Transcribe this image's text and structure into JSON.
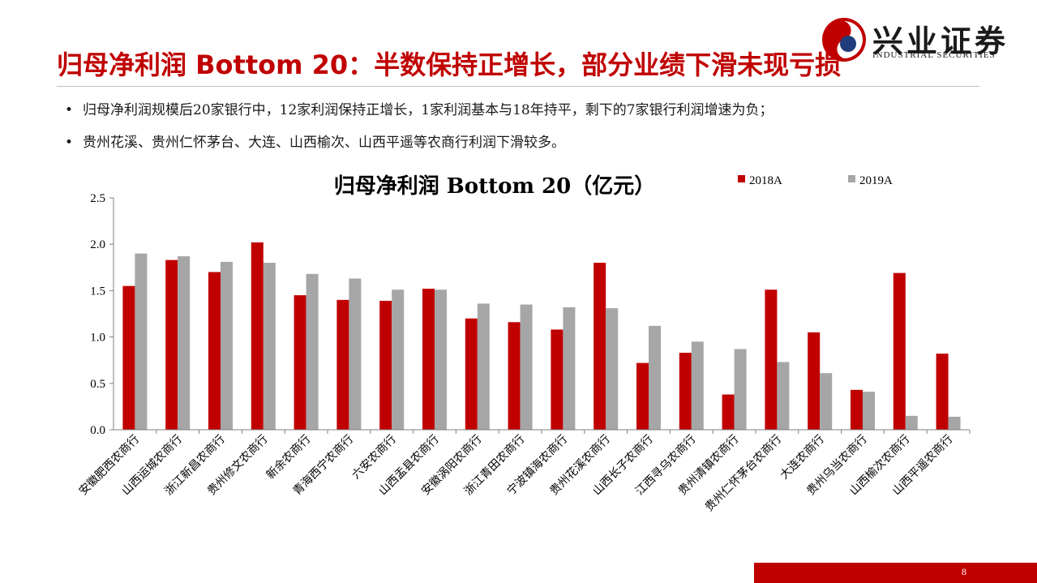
{
  "header": {
    "title": "归母净利润 Bottom 20：半数保持正增长，部分业绩下滑未现亏损",
    "logo_text_cn": "兴业证券",
    "logo_text_en": "INDUSTRIAL SECURITIES"
  },
  "bullets": [
    "归母净利润规模后20家银行中，12家利润保持正增长，1家利润基本与18年持平，剩下的7家银行利润增速为负；",
    "贵州花溪、贵州仁怀茅台、大连、山西榆次、山西平遥等农商行利润下滑较多。"
  ],
  "colors": {
    "accent": "#c00000",
    "series_2018": "#c00000",
    "series_2019": "#a6a6a6"
  },
  "chart_data": {
    "type": "bar",
    "title": "归母净利润 Bottom 20（亿元）",
    "categories": [
      "安徽肥西农商行",
      "山西运城农商行",
      "浙江新昌农商行",
      "贵州修文农商行",
      "新余农商行",
      "青海西宁农商行",
      "六安农商行",
      "山西盂县农商行",
      "安徽涡阳农商行",
      "浙江青田农商行",
      "宁波镇海农商行",
      "贵州花溪农商行",
      "山西长子农商行",
      "江西寻乌农商行",
      "贵州清镇农商行",
      "贵州仁怀茅台农商行",
      "大连农商行",
      "贵州乌当农商行",
      "山西榆次农商行",
      "山西平遥农商行"
    ],
    "series": [
      {
        "name": "2018A",
        "values": [
          1.55,
          1.83,
          1.7,
          2.02,
          1.45,
          1.4,
          1.39,
          1.52,
          1.2,
          1.16,
          1.08,
          1.8,
          0.72,
          0.83,
          0.38,
          1.51,
          1.05,
          0.43,
          1.69,
          0.82
        ]
      },
      {
        "name": "2019A",
        "values": [
          1.9,
          1.87,
          1.81,
          1.8,
          1.68,
          1.63,
          1.51,
          1.51,
          1.36,
          1.35,
          1.32,
          1.31,
          1.12,
          0.95,
          0.87,
          0.73,
          0.61,
          0.41,
          0.15,
          0.14
        ]
      }
    ],
    "ylim": [
      0,
      2.5
    ],
    "yticks": [
      "0.0",
      "0.5",
      "1.0",
      "1.5",
      "2.0",
      "2.5"
    ],
    "legend": "top-right",
    "grid": false
  },
  "footer": {
    "page_number": "8"
  }
}
